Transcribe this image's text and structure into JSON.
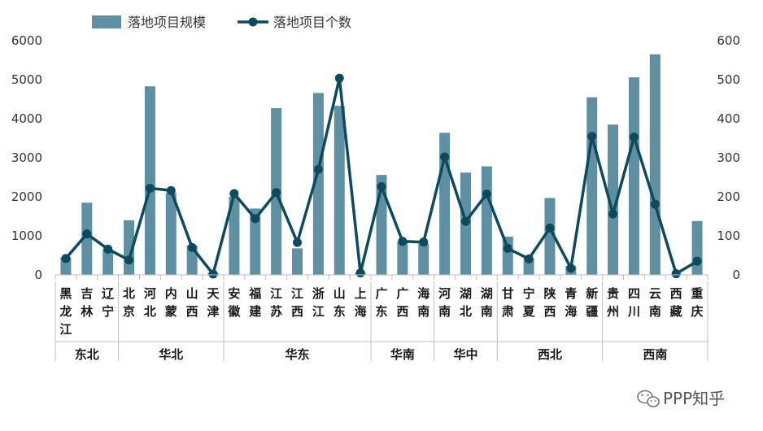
{
  "chart_data": {
    "type": "bar+line",
    "categories": [
      [
        "黑",
        "龙",
        "江"
      ],
      [
        "吉",
        "林"
      ],
      [
        "辽",
        "宁"
      ],
      [
        "北",
        "京"
      ],
      [
        "河",
        "北"
      ],
      [
        "内",
        "蒙"
      ],
      [
        "山",
        "西"
      ],
      [
        "天",
        "津"
      ],
      [
        "安",
        "徽"
      ],
      [
        "福",
        "建"
      ],
      [
        "江",
        "苏"
      ],
      [
        "江",
        "西"
      ],
      [
        "浙",
        "江"
      ],
      [
        "山",
        "东"
      ],
      [
        "上",
        "海"
      ],
      [
        "广",
        "东"
      ],
      [
        "广",
        "西"
      ],
      [
        "海",
        "南"
      ],
      [
        "河",
        "南"
      ],
      [
        "湖",
        "北"
      ],
      [
        "湖",
        "南"
      ],
      [
        "甘",
        "肃"
      ],
      [
        "宁",
        "夏"
      ],
      [
        "陕",
        "西"
      ],
      [
        "青",
        "海"
      ],
      [
        "新",
        "疆"
      ],
      [
        "贵",
        "州"
      ],
      [
        "四",
        "川"
      ],
      [
        "云",
        "南"
      ],
      [
        "西",
        "藏"
      ],
      [
        "重",
        "庆"
      ]
    ],
    "regions": [
      {
        "label": "东北",
        "count": 3
      },
      {
        "label": "华北",
        "count": 5
      },
      {
        "label": "华东",
        "count": 7
      },
      {
        "label": "华南",
        "count": 3
      },
      {
        "label": "华中",
        "count": 3
      },
      {
        "label": "西北",
        "count": 5
      },
      {
        "label": "西南",
        "count": 5
      }
    ],
    "series": [
      {
        "name": "落地项目规模",
        "type": "bar",
        "axis": "left",
        "color": "#5f8fa3",
        "values": [
          450,
          1850,
          650,
          1400,
          4830,
          2100,
          750,
          50,
          2000,
          1700,
          4270,
          680,
          4660,
          4330,
          60,
          2560,
          850,
          800,
          3640,
          2620,
          2780,
          980,
          420,
          1970,
          230,
          4550,
          3850,
          5060,
          5650,
          20,
          1380
        ]
      },
      {
        "name": "落地项目个数",
        "type": "line",
        "axis": "right",
        "color": "#0d4a5e",
        "values": [
          42,
          105,
          66,
          38,
          222,
          216,
          70,
          2,
          208,
          144,
          211,
          83,
          270,
          504,
          5,
          226,
          86,
          84,
          302,
          137,
          207,
          68,
          41,
          120,
          17,
          355,
          156,
          353,
          181,
          3,
          35
        ]
      }
    ],
    "y_left": {
      "min": 0,
      "max": 6000,
      "ticks": [
        "0",
        "1000",
        "2000",
        "3000",
        "4000",
        "5000",
        "6000"
      ]
    },
    "y_right": {
      "min": 0,
      "max": 600,
      "ticks": [
        "0",
        "100",
        "200",
        "300",
        "400",
        "500",
        "600"
      ]
    },
    "legend_position": "top-left",
    "grid": false
  },
  "watermark": {
    "text": "PPP知乎",
    "icon": "wechat-icon"
  }
}
